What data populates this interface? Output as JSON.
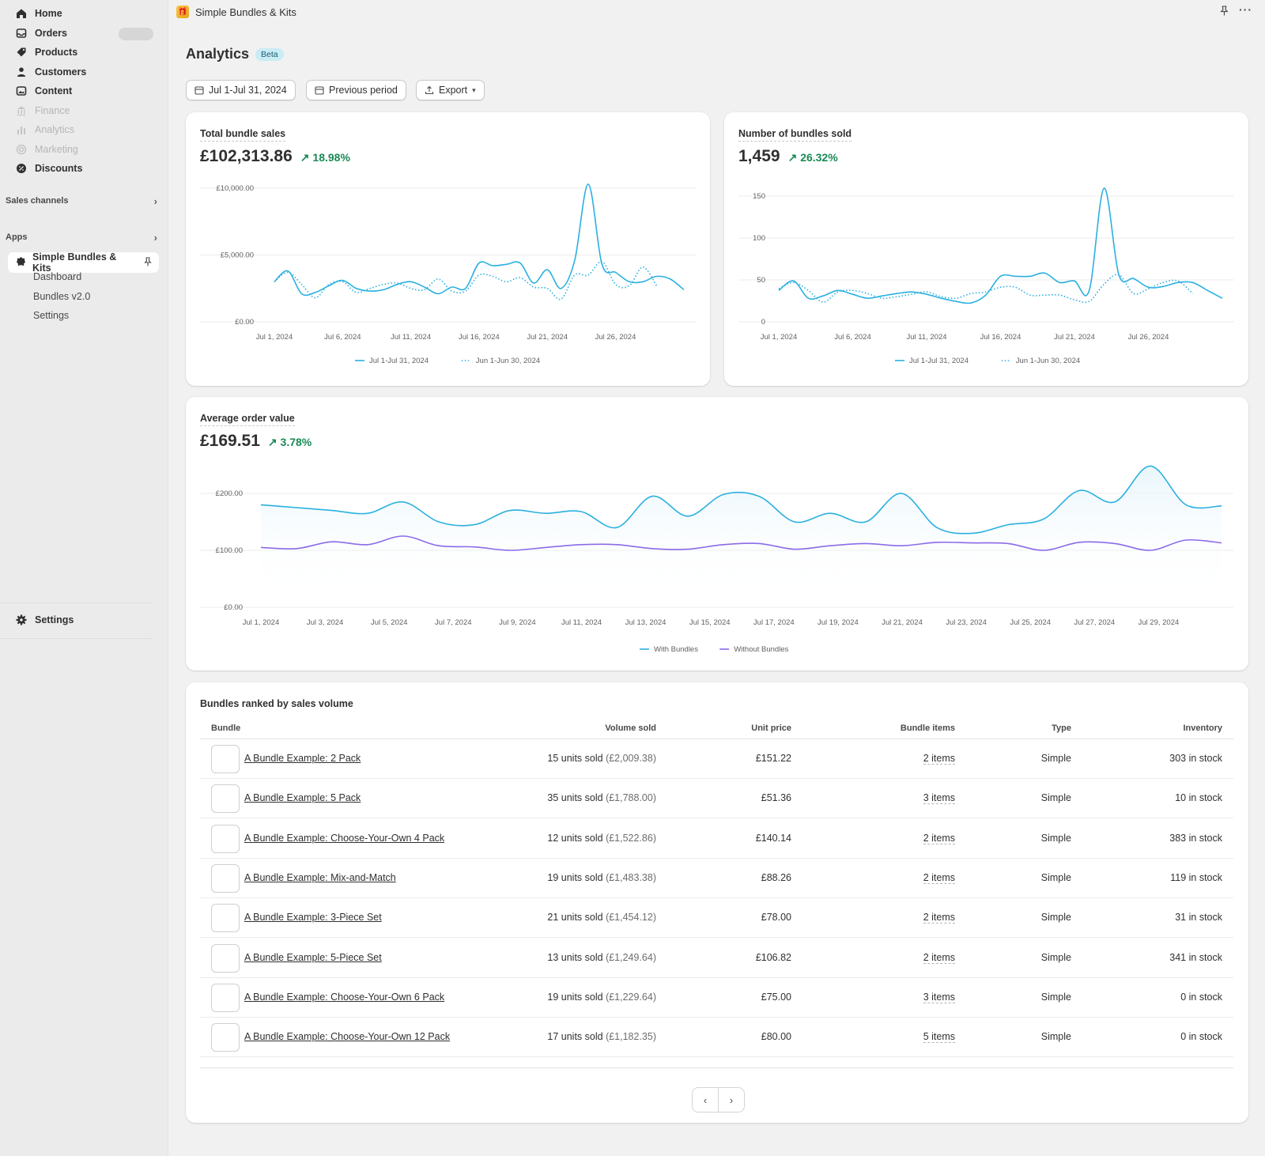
{
  "nav": {
    "items": [
      {
        "label": "Home",
        "icon": "home-icon",
        "disabled": false
      },
      {
        "label": "Orders",
        "icon": "inbox-icon",
        "disabled": false
      },
      {
        "label": "Products",
        "icon": "tag-icon",
        "disabled": false
      },
      {
        "label": "Customers",
        "icon": "person-icon",
        "disabled": false
      },
      {
        "label": "Content",
        "icon": "image-icon",
        "disabled": false
      },
      {
        "label": "Finance",
        "icon": "bank-icon",
        "disabled": true
      },
      {
        "label": "Analytics",
        "icon": "bar-chart-icon",
        "disabled": true
      },
      {
        "label": "Marketing",
        "icon": "target-icon",
        "disabled": true
      },
      {
        "label": "Discounts",
        "icon": "discount-icon",
        "disabled": false
      }
    ],
    "sales_channels": "Sales channels",
    "apps": "Apps",
    "app_name": "Simple Bundles & Kits",
    "app_subitems": [
      "Dashboard",
      "Bundles v2.0",
      "Settings"
    ],
    "settings": "Settings"
  },
  "topbar": {
    "title": "Simple Bundles & Kits"
  },
  "page": {
    "title": "Analytics",
    "badge": "Beta"
  },
  "toolbar": {
    "date_range": "Jul 1-Jul 31, 2024",
    "compare": "Previous period",
    "export": "Export"
  },
  "cards": {
    "sales": {
      "title": "Total bundle sales",
      "value": "£102,313.86",
      "delta": "18.98%"
    },
    "count": {
      "title": "Number of bundles sold",
      "value": "1,459",
      "delta": "26.32%"
    },
    "aov": {
      "title": "Average order value",
      "value": "£169.51",
      "delta": "3.78%"
    }
  },
  "chart_data": [
    {
      "type": "line",
      "title": "Total bundle sales",
      "x_ticks": [
        "Jul 1, 2024",
        "Jul 6, 2024",
        "Jul 11, 2024",
        "Jul 16, 2024",
        "Jul 21, 2024",
        "Jul 26, 2024"
      ],
      "y_ticks": [
        "£10,000.00",
        "£5,000.00",
        "£0.00"
      ],
      "ylim": [
        0,
        10000
      ],
      "series": [
        {
          "name": "Jul 1-Jul 31, 2024",
          "style": "solid",
          "values": [
            3000,
            3800,
            2100,
            2200,
            2700,
            3100,
            2500,
            2300,
            2400,
            2800,
            3000,
            2600,
            2100,
            2600,
            2500,
            4400,
            4200,
            4300,
            4400,
            2900,
            3900,
            2500,
            4600,
            10300,
            4300,
            3700,
            3000,
            3000,
            3400,
            3200,
            2400
          ]
        },
        {
          "name": "Jun 1-Jun 30, 2024",
          "style": "dotted",
          "values": [
            3000,
            3700,
            2800,
            1800,
            2800,
            3000,
            2200,
            2500,
            2800,
            2900,
            2500,
            2400,
            3200,
            2300,
            2300,
            3500,
            3400,
            3000,
            3300,
            2600,
            2500,
            1700,
            3500,
            3500,
            4500,
            2800,
            2700,
            4100,
            2700,
            null,
            null
          ]
        }
      ],
      "legend": "bottom"
    },
    {
      "type": "line",
      "title": "Number of bundles sold",
      "x_ticks": [
        "Jul 1, 2024",
        "Jul 6, 2024",
        "Jul 11, 2024",
        "Jul 16, 2024",
        "Jul 21, 2024",
        "Jul 26, 2024"
      ],
      "y_ticks": [
        "150",
        "100",
        "50",
        "0"
      ],
      "ylim": [
        0,
        160
      ],
      "series": [
        {
          "name": "Jul 1-Jul 31, 2024",
          "style": "solid",
          "values": [
            40,
            52,
            30,
            33,
            40,
            35,
            30,
            33,
            36,
            38,
            35,
            30,
            26,
            24,
            34,
            58,
            58,
            58,
            62,
            50,
            52,
            40,
            170,
            60,
            55,
            44,
            45,
            50,
            50,
            40,
            30
          ]
        },
        {
          "name": "Jun 1-Jun 30, 2024",
          "style": "dotted",
          "values": [
            42,
            50,
            40,
            25,
            38,
            40,
            36,
            30,
            32,
            35,
            38,
            32,
            30,
            36,
            38,
            44,
            44,
            34,
            34,
            34,
            28,
            26,
            48,
            60,
            36,
            42,
            50,
            52,
            36,
            null,
            null
          ]
        }
      ],
      "legend": "bottom"
    },
    {
      "type": "area",
      "title": "Average order value",
      "x_ticks": [
        "Jul 1, 2024",
        "Jul 3, 2024",
        "Jul 5, 2024",
        "Jul 7, 2024",
        "Jul 9, 2024",
        "Jul 11, 2024",
        "Jul 13, 2024",
        "Jul 15, 2024",
        "Jul 17, 2024",
        "Jul 19, 2024",
        "Jul 21, 2024",
        "Jul 23, 2024",
        "Jul 25, 2024",
        "Jul 27, 2024",
        "Jul 29, 2024"
      ],
      "y_ticks": [
        "£200.00",
        "£100.00",
        "£0.00"
      ],
      "ylim": [
        0,
        200
      ],
      "series": [
        {
          "name": "With Bundles",
          "values": [
            180,
            175,
            170,
            165,
            185,
            150,
            145,
            170,
            165,
            168,
            140,
            195,
            160,
            198,
            195,
            150,
            165,
            150,
            200,
            140,
            130,
            145,
            155,
            205,
            185,
            248,
            180,
            178
          ]
        },
        {
          "name": "Without Bundles",
          "values": [
            105,
            103,
            115,
            110,
            125,
            108,
            106,
            100,
            105,
            110,
            110,
            103,
            102,
            110,
            112,
            102,
            108,
            112,
            108,
            114,
            113,
            112,
            100,
            114,
            112,
            100,
            118,
            113
          ]
        }
      ],
      "legend": "bottom"
    }
  ],
  "table": {
    "title": "Bundles ranked by sales volume",
    "headers": [
      "Bundle",
      "Volume sold",
      "Unit price",
      "Bundle items",
      "Type",
      "Inventory"
    ],
    "rows": [
      {
        "name": "A Bundle Example: 2 Pack",
        "units": "15 units sold",
        "amount": "(£2,009.38)",
        "price": "£151.22",
        "items": "2 items",
        "type": "Simple",
        "inventory": "303 in stock"
      },
      {
        "name": "A Bundle Example: 5 Pack",
        "units": "35 units sold",
        "amount": "(£1,788.00)",
        "price": "£51.36",
        "items": "3 items",
        "type": "Simple",
        "inventory": "10 in stock"
      },
      {
        "name": "A Bundle Example: Choose-Your-Own 4 Pack",
        "units": "12 units sold",
        "amount": "(£1,522.86)",
        "price": "£140.14",
        "items": "2 items",
        "type": "Simple",
        "inventory": "383 in stock"
      },
      {
        "name": "A Bundle Example: Mix-and-Match",
        "units": "19 units sold",
        "amount": "(£1,483.38)",
        "price": "£88.26",
        "items": "2 items",
        "type": "Simple",
        "inventory": "119 in stock"
      },
      {
        "name": "A Bundle Example: 3-Piece Set",
        "units": "21 units sold",
        "amount": "(£1,454.12)",
        "price": "£78.00",
        "items": "2 items",
        "type": "Simple",
        "inventory": "31 in stock"
      },
      {
        "name": "A Bundle Example: 5-Piece Set",
        "units": "13 units sold",
        "amount": "(£1,249.64)",
        "price": "£106.82",
        "items": "2 items",
        "type": "Simple",
        "inventory": "341 in stock"
      },
      {
        "name": "A Bundle Example: Choose-Your-Own 6 Pack",
        "units": "19 units sold",
        "amount": "(£1,229.64)",
        "price": "£75.00",
        "items": "3 items",
        "type": "Simple",
        "inventory": "0 in stock"
      },
      {
        "name": "A Bundle Example: Choose-Your-Own 12 Pack",
        "units": "17 units sold",
        "amount": "(£1,182.35)",
        "price": "£80.00",
        "items": "5 items",
        "type": "Simple",
        "inventory": "0 in stock"
      }
    ]
  },
  "colors": {
    "primary_series": "#2bb0e0",
    "secondary_series": "#8b6be8",
    "delta_positive": "#1a8a55"
  }
}
